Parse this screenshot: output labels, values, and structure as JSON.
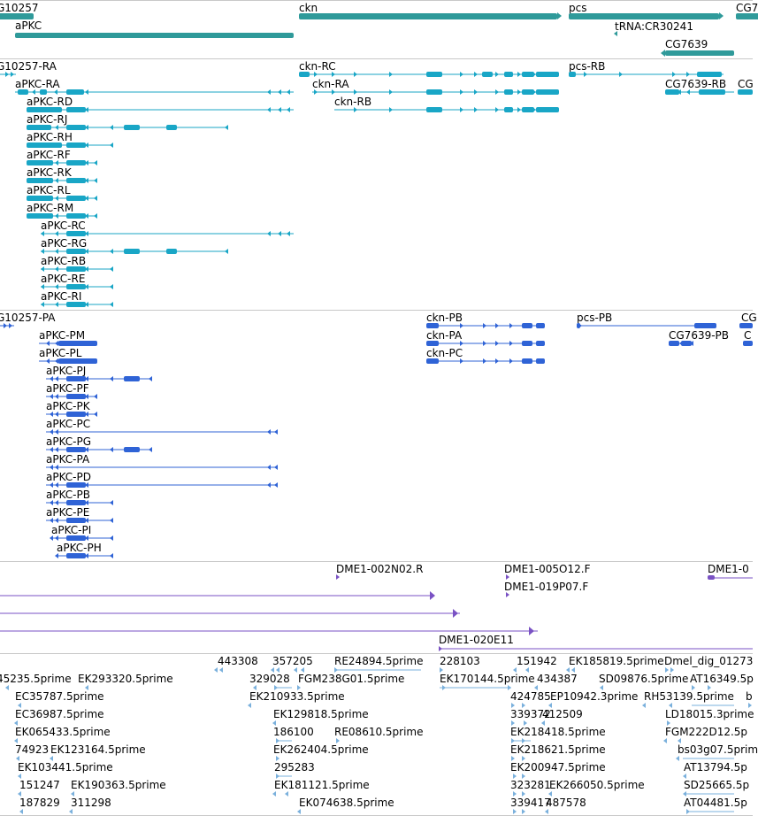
{
  "colors": {
    "gene": "#2f9a9a",
    "tx": "#19a6c6",
    "mrna": "#2f63d6",
    "est": "#7a52c4",
    "cdna": "#7ab0dc",
    "sep": "#c8c8c8"
  },
  "gene_labels": [
    "G10257",
    "aPKC",
    "ckn",
    "pcs",
    "CG7",
    "tRNA:CR30241",
    "CG7639"
  ],
  "transcript_labels": [
    "G10257-RA",
    "aPKC-RA",
    "aPKC-RD",
    "aPKC-RJ",
    "aPKC-RH",
    "aPKC-RF",
    "aPKC-RK",
    "aPKC-RL",
    "aPKC-RM",
    "aPKC-RC",
    "aPKC-RG",
    "aPKC-RB",
    "aPKC-RE",
    "aPKC-RI",
    "ckn-RC",
    "ckn-RA",
    "ckn-RB",
    "pcs-RB",
    "CG7639-RB",
    "CG"
  ],
  "protein_labels": [
    "G10257-PA",
    "aPKC-PM",
    "aPKC-PL",
    "aPKC-PJ",
    "aPKC-PF",
    "aPKC-PK",
    "aPKC-PC",
    "aPKC-PG",
    "aPKC-PA",
    "aPKC-PD",
    "aPKC-PB",
    "aPKC-PE",
    "aPKC-PI",
    "aPKC-PH",
    "ckn-PB",
    "ckn-PA",
    "ckn-PC",
    "pcs-PB",
    "CG7639-PB",
    "CG",
    "C"
  ],
  "est_labels": [
    "DME1-002N02.R",
    "DME1-005O12.F",
    "DME1-019P07.F",
    "DME1-0",
    "DME1-020E11"
  ],
  "cdna_labels": [
    "443308",
    "357205",
    "RE24894.5prime",
    "228103",
    "151942",
    "EK185819.5prime",
    "Dmel_dig_01273",
    "45235.5prime",
    "EK293320.5prime",
    "329028",
    "FGM238G01.5prime",
    "EK170144.5prime",
    "434387",
    "SD09876.5prime",
    "AT16349.5p",
    "EC35787.5prime",
    "EK210933.5prime",
    "424785",
    "EP10942.3prime",
    "RH53139.5prime",
    "b",
    "EC36987.5prime",
    "EK129818.5prime",
    "339372",
    "412509",
    "LD18015.3prime",
    "EK065433.5prime",
    "186100",
    "RE08610.5prime",
    "EK218418.5prime",
    "FGM222D12.5p",
    "74923",
    "EK123164.5prime",
    "EK262404.5prime",
    "EK218621.5prime",
    "bs03g07.5prim",
    "EK103441.5prime",
    "295283",
    "EK200947.5prime",
    "AT13794.5p",
    "151247",
    "EK190363.5prime",
    "EK181121.5prime",
    "323281",
    "EK266050.5prime",
    "SD25665.5p",
    "187829",
    "311298",
    "EK074638.5prime",
    "339417",
    "487578",
    "AT04481.5p"
  ]
}
